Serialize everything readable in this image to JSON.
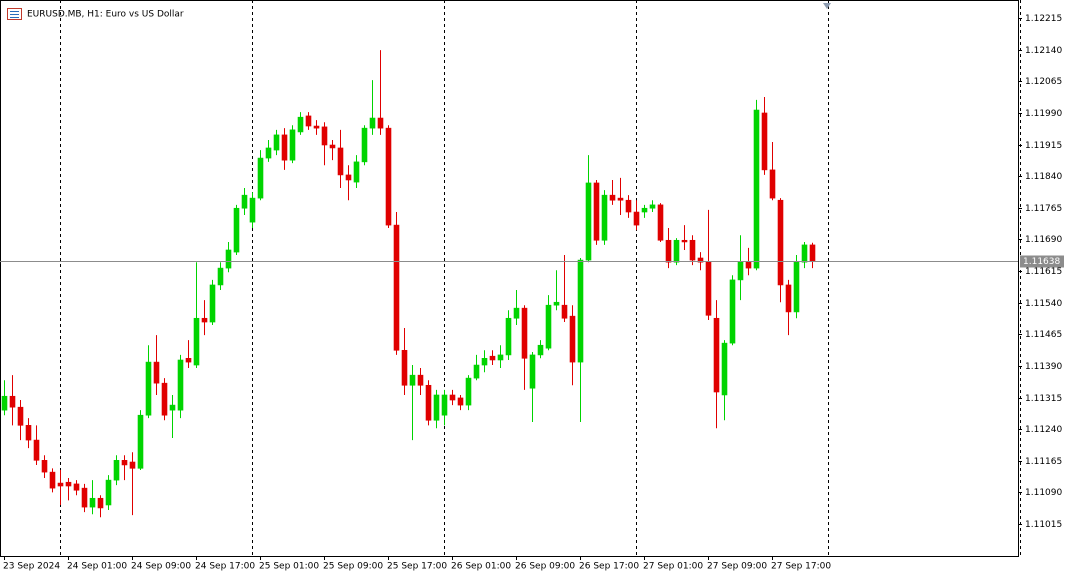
{
  "chart_data": {
    "type": "candlestick",
    "title": "EURUSD.MB, H1:  Euro vs US Dollar",
    "categories": [
      "23 Sep 2024",
      null,
      null,
      null,
      null,
      null,
      null,
      null,
      "24 Sep 01:00",
      null,
      null,
      null,
      null,
      null,
      null,
      null,
      "24 Sep 09:00",
      null,
      null,
      null,
      null,
      null,
      null,
      null,
      "24 Sep 17:00",
      null,
      null,
      null,
      null,
      null,
      null,
      null,
      "25 Sep 01:00",
      null,
      null,
      null,
      null,
      null,
      null,
      null,
      "25 Sep 09:00",
      null,
      null,
      null,
      null,
      null,
      null,
      null,
      "25 Sep 17:00",
      null,
      null,
      null,
      null,
      null,
      null,
      null,
      "26 Sep 01:00",
      null,
      null,
      null,
      null,
      null,
      null,
      null,
      "26 Sep 09:00",
      null,
      null,
      null,
      null,
      null,
      null,
      null,
      "26 Sep 17:00",
      null,
      null,
      null,
      null,
      null,
      null,
      null,
      "27 Sep 01:00",
      null,
      null,
      null,
      null,
      null,
      null,
      null,
      "27 Sep 09:00",
      null,
      null,
      null,
      null,
      null,
      null,
      null,
      "27 Sep 17:00",
      null,
      null,
      null,
      null,
      null
    ],
    "open": [
      1.11285,
      1.11318,
      1.11292,
      1.11249,
      1.11214,
      1.11166,
      1.11138,
      1.11112,
      1.11114,
      1.1111,
      1.111,
      1.11055,
      1.11076,
      1.1106,
      1.11119,
      1.11166,
      1.11162,
      1.11147,
      1.11273,
      1.11399,
      1.11349,
      1.11285,
      1.11285,
      1.11408,
      1.11392,
      1.11503,
      1.11494,
      1.11582,
      1.11622,
      1.1166,
      1.11764,
      1.11731,
      1.11788,
      1.11883,
      1.11902,
      1.11938,
      1.11878,
      1.11945,
      1.11983,
      1.11959,
      1.11957,
      1.11914,
      1.11907,
      1.11843,
      1.11826,
      1.11874,
      1.11954,
      1.11978,
      1.11954,
      1.11724,
      1.11427,
      1.11344,
      1.11368,
      1.11344,
      1.11261,
      1.11273,
      1.11321,
      1.11314,
      1.11297,
      1.11361,
      1.11392,
      1.11413,
      1.11404,
      1.11416,
      1.11503,
      1.11527,
      1.11337,
      1.11416,
      1.11432,
      1.11534,
      1.11534,
      1.11508,
      1.11399,
      1.11641,
      1.11824,
      1.11688,
      1.11795,
      1.11788,
      1.11783,
      1.11755,
      1.11755,
      1.11764,
      1.11772,
      1.11688,
      1.11636,
      1.11688,
      1.11688,
      1.11646,
      1.11636,
      1.11503,
      1.11321,
      1.11444,
      1.11594,
      1.11636,
      1.11622,
      1.1199,
      1.11855,
      1.11783,
      1.11582,
      1.11518,
      1.11636,
      1.11677
    ],
    "high": [
      1.11356,
      1.11368,
      1.11309,
      1.11266,
      1.11249,
      1.11178,
      1.11147,
      1.11143,
      1.11124,
      1.11119,
      1.1111,
      1.11119,
      1.11083,
      1.11131,
      1.11178,
      1.11178,
      1.11185,
      1.11285,
      1.11439,
      1.11463,
      1.11361,
      1.11321,
      1.11416,
      1.11451,
      1.11636,
      1.11546,
      1.11594,
      1.11636,
      1.11684,
      1.11772,
      1.11812,
      1.11802,
      1.11902,
      1.11926,
      1.1195,
      1.11954,
      1.11961,
      1.11992,
      1.11992,
      1.11973,
      1.11968,
      1.11926,
      1.1195,
      1.11866,
      1.1189,
      1.11961,
      1.12068,
      1.12139,
      1.11961,
      1.11755,
      1.1148,
      1.11392,
      1.11385,
      1.11356,
      1.11333,
      1.11333,
      1.11333,
      1.11321,
      1.11368,
      1.11416,
      1.11427,
      1.11427,
      1.11439,
      1.11522,
      1.1157,
      1.11534,
      1.11423,
      1.11451,
      1.11558,
      1.11617,
      1.11653,
      1.11534,
      1.11646,
      1.1189,
      1.11831,
      1.11807,
      1.11831,
      1.11836,
      1.11795,
      1.11783,
      1.11772,
      1.11783,
      1.11776,
      1.11717,
      1.11693,
      1.11724,
      1.117,
      1.1166,
      1.1176,
      1.11546,
      1.11451,
      1.11605,
      1.117,
      1.1167,
      1.12021,
      1.12028,
      1.11921,
      1.11788,
      1.11594,
      1.11653,
      1.11684,
      1.11682
    ],
    "low": [
      1.11273,
      1.11249,
      1.11214,
      1.11195,
      1.11155,
      1.11124,
      1.1109,
      1.1106,
      1.11071,
      1.11083,
      1.11043,
      1.11038,
      1.11031,
      1.11048,
      1.11107,
      1.11119,
      1.11036,
      1.11143,
      1.11266,
      1.11321,
      1.11261,
      1.11219,
      1.11266,
      1.11385,
      1.11385,
      1.11463,
      1.11487,
      1.1157,
      1.11612,
      1.11653,
      1.11748,
      1.11717,
      1.11783,
      1.11874,
      1.1189,
      1.11855,
      1.11871,
      1.11938,
      1.1195,
      1.11938,
      1.11866,
      1.11878,
      1.11812,
      1.11783,
      1.11812,
      1.11866,
      1.11938,
      1.11938,
      1.11717,
      1.11416,
      1.11321,
      1.11214,
      1.11321,
      1.11249,
      1.11242,
      1.11249,
      1.11297,
      1.11285,
      1.11285,
      1.11356,
      1.11375,
      1.11392,
      1.11385,
      1.11404,
      1.11487,
      1.11333,
      1.11257,
      1.11408,
      1.11427,
      1.11522,
      1.11494,
      1.11344,
      1.11257,
      1.11636,
      1.11677,
      1.11677,
      1.11772,
      1.11748,
      1.11741,
      1.11712,
      1.11741,
      1.11755,
      1.11684,
      1.11622,
      1.11629,
      1.11665,
      1.11629,
      1.11617,
      1.11499,
      1.11242,
      1.11261,
      1.11439,
      1.11546,
      1.11605,
      1.11617,
      1.11843,
      1.11783,
      1.11541,
      1.11463,
      1.11503,
      1.11622,
      1.11622
    ],
    "close": [
      1.11318,
      1.11292,
      1.11249,
      1.11214,
      1.11166,
      1.11138,
      1.111,
      1.11105,
      1.11105,
      1.11095,
      1.11055,
      1.11076,
      1.11053,
      1.11119,
      1.11166,
      1.11155,
      1.11147,
      1.11273,
      1.11399,
      1.11349,
      1.11273,
      1.11297,
      1.11404,
      1.11399,
      1.11503,
      1.11494,
      1.11582,
      1.11622,
      1.11665,
      1.11764,
      1.11795,
      1.11788,
      1.11883,
      1.11907,
      1.11938,
      1.11878,
      1.1195,
      1.1198,
      1.11959,
      1.11954,
      1.11914,
      1.11907,
      1.11843,
      1.11831,
      1.11874,
      1.11954,
      1.11978,
      1.11954,
      1.11724,
      1.11427,
      1.11344,
      1.11368,
      1.11344,
      1.11261,
      1.11321,
      1.11321,
      1.11309,
      1.11297,
      1.11361,
      1.11392,
      1.11408,
      1.11404,
      1.11416,
      1.11503,
      1.11527,
      1.11408,
      1.11416,
      1.11439,
      1.11534,
      1.11541,
      1.11503,
      1.11399,
      1.11641,
      1.11824,
      1.11688,
      1.11795,
      1.11783,
      1.11783,
      1.11755,
      1.11724,
      1.11764,
      1.11772,
      1.11688,
      1.11636,
      1.11688,
      1.11684,
      1.11641,
      1.11636,
      1.1151,
      1.11328,
      1.11444,
      1.11594,
      1.11636,
      1.11622,
      1.11997,
      1.11855,
      1.11788,
      1.11582,
      1.11518,
      1.11636,
      1.11677,
      1.11638
    ],
    "up_color": "#00d400",
    "down_color": "#e00000",
    "last_price": 1.11638,
    "ylim": [
      1.10939,
      1.12258
    ],
    "yticks": [
      1.12215,
      {
        "value": 1.1214,
        "label": "1.12140"
      },
      1.12065,
      {
        "value": 1.1199,
        "label": "1.11990"
      },
      1.11915,
      {
        "value": 1.1184,
        "label": "1.11840"
      },
      1.11765,
      {
        "value": 1.1169,
        "label": "1.11690"
      },
      1.11615,
      {
        "value": 1.1154,
        "label": "1.11540"
      },
      1.11465,
      {
        "value": 1.1139,
        "label": "1.11390"
      },
      1.11315,
      {
        "value": 1.1124,
        "label": "1.11240"
      },
      1.11165,
      {
        "value": 1.1109,
        "label": "1.11090"
      },
      1.11015
    ],
    "grid": false
  }
}
